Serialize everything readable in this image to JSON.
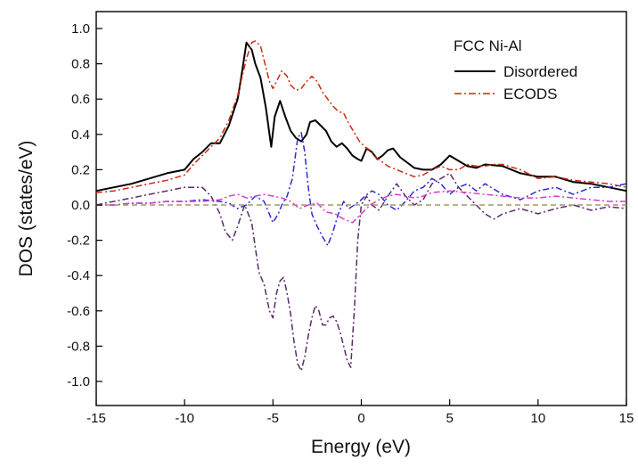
{
  "chart_data": {
    "type": "line",
    "title": "",
    "xlabel": "Energy (eV)",
    "ylabel": "DOS (states/eV)",
    "xlim": [
      -15,
      15
    ],
    "ylim": [
      -1.1,
      1.05
    ],
    "xticks": [
      -15,
      -10,
      -5,
      0,
      5,
      10,
      15
    ],
    "yticks": [
      -1.0,
      -0.8,
      -0.6,
      -0.4,
      -0.2,
      0.0,
      0.2,
      0.4,
      0.6,
      0.8,
      1.0
    ],
    "xtick_labels": [
      "-15",
      "-10",
      "-5",
      "0",
      "5",
      "10",
      "15"
    ],
    "ytick_labels": [
      "-1.0",
      "-0.8",
      "-0.6",
      "-0.4",
      "-0.2",
      "0.0",
      "0.2",
      "0.4",
      "0.6",
      "0.8",
      "1.0"
    ],
    "grid": false,
    "legend": {
      "title": "FCC Ni-Al",
      "placement": "top-right",
      "entries": [
        "Disordered",
        "ECODS"
      ]
    },
    "series": [
      {
        "name": "Disordered",
        "color": "#000000",
        "style": "solid",
        "x": [
          -15,
          -14,
          -13,
          -12,
          -11,
          -10,
          -9.5,
          -9,
          -8.5,
          -8,
          -7.5,
          -7,
          -6.8,
          -6.5,
          -6.2,
          -6,
          -5.7,
          -5.4,
          -5.1,
          -4.9,
          -4.6,
          -4.3,
          -4,
          -3.7,
          -3.4,
          -3.1,
          -2.9,
          -2.6,
          -2.3,
          -2,
          -1.7,
          -1.4,
          -1.1,
          -0.8,
          -0.5,
          -0.2,
          0,
          0.3,
          0.6,
          0.9,
          1.2,
          1.5,
          1.8,
          2.2,
          2.6,
          3,
          3.5,
          4,
          4.5,
          5,
          5.5,
          6,
          6.5,
          7,
          8,
          9,
          10,
          11,
          12,
          13,
          14,
          15
        ],
        "y": [
          0.08,
          0.1,
          0.12,
          0.15,
          0.18,
          0.2,
          0.26,
          0.3,
          0.35,
          0.35,
          0.45,
          0.6,
          0.72,
          0.92,
          0.88,
          0.8,
          0.72,
          0.55,
          0.33,
          0.5,
          0.59,
          0.5,
          0.42,
          0.38,
          0.36,
          0.4,
          0.47,
          0.48,
          0.45,
          0.42,
          0.36,
          0.33,
          0.35,
          0.32,
          0.28,
          0.26,
          0.25,
          0.32,
          0.3,
          0.26,
          0.28,
          0.31,
          0.32,
          0.27,
          0.24,
          0.21,
          0.2,
          0.2,
          0.23,
          0.28,
          0.25,
          0.22,
          0.21,
          0.23,
          0.22,
          0.18,
          0.16,
          0.16,
          0.13,
          0.12,
          0.1,
          0.08
        ]
      },
      {
        "name": "ECODS",
        "color": "#cc2a10",
        "style": "dash-dot",
        "x": [
          -15,
          -14,
          -13,
          -12,
          -11,
          -10,
          -9.5,
          -9,
          -8.5,
          -8,
          -7.5,
          -7,
          -6.5,
          -6.2,
          -6,
          -5.7,
          -5.4,
          -5.2,
          -5,
          -4.8,
          -4.5,
          -4.2,
          -4,
          -3.7,
          -3.4,
          -3.1,
          -2.8,
          -2.5,
          -2.2,
          -1.9,
          -1.6,
          -1.3,
          -1,
          -0.7,
          -0.4,
          -0.1,
          0.2,
          0.5,
          0.8,
          1.1,
          1.5,
          2,
          2.5,
          3,
          3.5,
          4,
          4.5,
          5,
          5.5,
          6,
          6.5,
          7,
          7.5,
          8,
          9,
          10,
          11,
          12,
          13,
          14,
          15
        ],
        "y": [
          0.07,
          0.08,
          0.1,
          0.12,
          0.14,
          0.17,
          0.23,
          0.28,
          0.33,
          0.38,
          0.48,
          0.62,
          0.83,
          0.92,
          0.93,
          0.9,
          0.78,
          0.7,
          0.66,
          0.7,
          0.76,
          0.73,
          0.68,
          0.65,
          0.66,
          0.7,
          0.73,
          0.7,
          0.64,
          0.6,
          0.56,
          0.53,
          0.52,
          0.46,
          0.41,
          0.36,
          0.33,
          0.31,
          0.27,
          0.25,
          0.22,
          0.2,
          0.18,
          0.16,
          0.17,
          0.2,
          0.22,
          0.2,
          0.2,
          0.23,
          0.22,
          0.22,
          0.23,
          0.23,
          0.2,
          0.15,
          0.16,
          0.14,
          0.13,
          0.12,
          0.1
        ]
      },
      {
        "name": "",
        "color": "#2c2ccc",
        "style": "dash-dot",
        "x": [
          -15,
          -14,
          -13,
          -12,
          -11,
          -10,
          -9,
          -8,
          -7.5,
          -7,
          -6.5,
          -6,
          -5.5,
          -5,
          -4.7,
          -4.5,
          -4.2,
          -3.9,
          -3.6,
          -3.4,
          -3.2,
          -3,
          -2.8,
          -2.5,
          -2.2,
          -1.9,
          -1.6,
          -1.3,
          -1,
          -0.7,
          -0.4,
          -0.1,
          0.2,
          0.6,
          1,
          1.5,
          2,
          2.5,
          3,
          3.5,
          4,
          4.5,
          5,
          5.5,
          6,
          6.5,
          7,
          8,
          9,
          10,
          11,
          12,
          13,
          14,
          15
        ],
        "y": [
          0.0,
          0.0,
          0.01,
          0.01,
          0.02,
          0.02,
          0.03,
          0.02,
          0.01,
          -0.02,
          0.0,
          0.05,
          0.02,
          -0.1,
          -0.05,
          0.0,
          0.05,
          0.15,
          0.38,
          0.41,
          0.3,
          0.1,
          -0.05,
          -0.12,
          -0.18,
          -0.23,
          -0.15,
          -0.05,
          0.02,
          -0.02,
          0.0,
          0.02,
          0.05,
          0.08,
          0.06,
          0.0,
          -0.03,
          0.02,
          0.08,
          0.1,
          0.15,
          0.12,
          0.06,
          0.1,
          0.12,
          0.08,
          0.12,
          0.06,
          0.03,
          0.08,
          0.1,
          0.06,
          0.1,
          0.1,
          0.12
        ]
      },
      {
        "name": "",
        "color": "#5a2a6a",
        "style": "dash-dot",
        "x": [
          -15,
          -14,
          -13,
          -12,
          -11,
          -10,
          -9,
          -8.5,
          -8,
          -7.7,
          -7.3,
          -7,
          -6.6,
          -6.2,
          -5.8,
          -5.5,
          -5.2,
          -5,
          -4.8,
          -4.6,
          -4.4,
          -4.2,
          -4,
          -3.8,
          -3.6,
          -3.4,
          -3.2,
          -3,
          -2.8,
          -2.6,
          -2.4,
          -2.2,
          -2,
          -1.8,
          -1.6,
          -1.4,
          -1.2,
          -1,
          -0.8,
          -0.6,
          -0.4,
          -0.2,
          0,
          0.3,
          0.6,
          1,
          1.5,
          2,
          2.5,
          3,
          3.5,
          4,
          4.5,
          5,
          5.5,
          6,
          6.5,
          7,
          7.5,
          8,
          9,
          10,
          11,
          12,
          13,
          14,
          15
        ],
        "y": [
          0.0,
          0.02,
          0.04,
          0.06,
          0.08,
          0.1,
          0.1,
          0.05,
          -0.05,
          -0.15,
          -0.2,
          -0.12,
          0.0,
          -0.1,
          -0.38,
          -0.45,
          -0.6,
          -0.64,
          -0.5,
          -0.43,
          -0.41,
          -0.5,
          -0.62,
          -0.78,
          -0.9,
          -0.94,
          -0.86,
          -0.74,
          -0.64,
          -0.57,
          -0.6,
          -0.68,
          -0.68,
          -0.64,
          -0.63,
          -0.66,
          -0.72,
          -0.8,
          -0.88,
          -0.92,
          -0.6,
          -0.2,
          0.0,
          0.05,
          0.0,
          -0.03,
          0.05,
          0.12,
          0.05,
          0.0,
          0.03,
          0.12,
          0.15,
          0.18,
          0.1,
          0.05,
          0.0,
          -0.05,
          -0.08,
          -0.05,
          -0.02,
          -0.05,
          -0.02,
          0.0,
          -0.03,
          -0.01,
          -0.02
        ]
      },
      {
        "name": "",
        "color": "#d63ad6",
        "style": "dash-dot",
        "x": [
          -15,
          -14,
          -13,
          -12,
          -11,
          -10,
          -9,
          -8,
          -7.5,
          -7,
          -6.5,
          -6,
          -5.5,
          -5,
          -4.5,
          -4,
          -3.5,
          -3,
          -2.5,
          -2,
          -1.5,
          -1,
          -0.5,
          0,
          0.5,
          1,
          1.5,
          2,
          2.5,
          3,
          3.5,
          4,
          5,
          6,
          7,
          8,
          9,
          10,
          11,
          12,
          13,
          14,
          15
        ],
        "y": [
          0.0,
          0.0,
          0.01,
          0.01,
          0.02,
          0.02,
          0.02,
          0.03,
          0.05,
          0.06,
          0.04,
          0.05,
          0.06,
          0.05,
          0.04,
          0.02,
          -0.02,
          0.0,
          0.01,
          -0.04,
          -0.05,
          -0.08,
          -0.1,
          -0.05,
          0.0,
          0.03,
          0.05,
          0.06,
          0.05,
          0.04,
          0.05,
          0.07,
          0.08,
          0.07,
          0.06,
          0.05,
          0.04,
          0.04,
          0.05,
          0.04,
          0.03,
          0.02,
          0.02
        ]
      },
      {
        "name": "",
        "color": "#a09a6a",
        "style": "dashed",
        "x": [
          -15,
          15
        ],
        "y": [
          0.0,
          0.0
        ]
      }
    ]
  }
}
